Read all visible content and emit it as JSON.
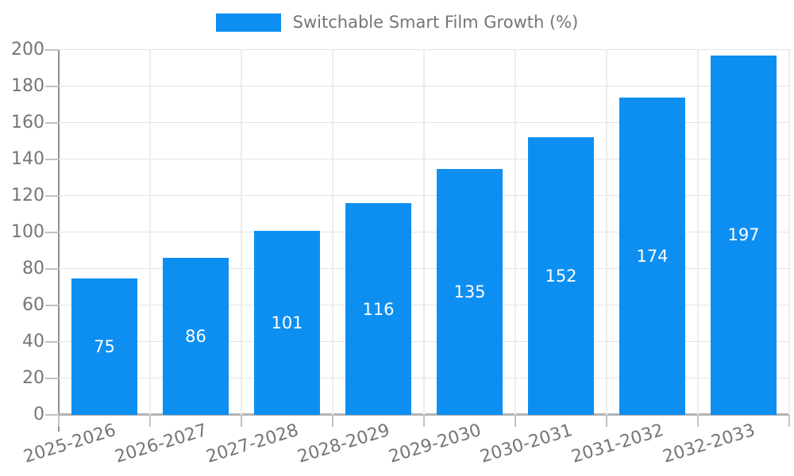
{
  "legend": {
    "label": "Switchable Smart Film Growth (%)"
  },
  "chart_data": {
    "type": "bar",
    "title": "Switchable Smart Film Growth (%)",
    "series_name": "Switchable Smart Film Growth (%)",
    "categories": [
      "2025-2026",
      "2026-2027",
      "2027-2028",
      "2028-2029",
      "2029-2030",
      "2030-2031",
      "2031-2032",
      "2032-2033"
    ],
    "values": [
      75,
      86,
      101,
      116,
      135,
      152,
      174,
      197
    ],
    "value_labels": [
      "75",
      "86",
      "101",
      "116",
      "135",
      "152",
      "174",
      "197"
    ],
    "xlabel": "",
    "ylabel": "",
    "ylim": [
      0,
      200
    ],
    "ytick_step": 20,
    "yticks": [
      0,
      20,
      40,
      60,
      80,
      100,
      120,
      140,
      160,
      180,
      200
    ],
    "grid": true,
    "legend_position": "top-center",
    "bar_color": "#0D8FF2",
    "value_label_color": "#ffffff",
    "axis_text_color": "#757575",
    "gridline_color": "#e3e3e3",
    "axis_line_color": "#909090",
    "baseline_color": "#b3b3b3"
  }
}
